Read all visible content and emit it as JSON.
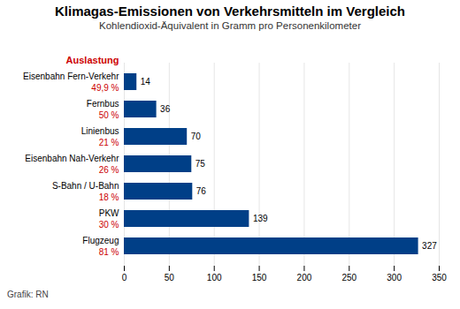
{
  "chart_data": {
    "type": "bar",
    "orientation": "horizontal",
    "title": "Klimagas-Emissionen von Verkehrsmitteln im Vergleich",
    "subtitle": "Kohlendioxid-Äquivalent in Gramm pro Personenkilometer",
    "categories": [
      "Eisenbahn Fern-Verkehr",
      "Fernbus",
      "Linienbus",
      "Eisenbahn Nah-Verkehr",
      "S-Bahn / U-Bahn",
      "PKW",
      "Flugzeug"
    ],
    "values": [
      14,
      36,
      70,
      75,
      76,
      139,
      327
    ],
    "color": "#003f87",
    "percentages_title": "Auslastung",
    "percentages": [
      "49,9 %",
      "50 %",
      "21 %",
      "26 %",
      "18 %",
      "30 %",
      "81 %"
    ],
    "percentages_color": "#cc0000",
    "footer": "Grafik: RN",
    "xlim": [
      0,
      350
    ],
    "xticks": [
      0,
      50,
      100,
      150,
      200,
      250,
      300,
      350
    ],
    "grid": true,
    "data_labels": true
  }
}
